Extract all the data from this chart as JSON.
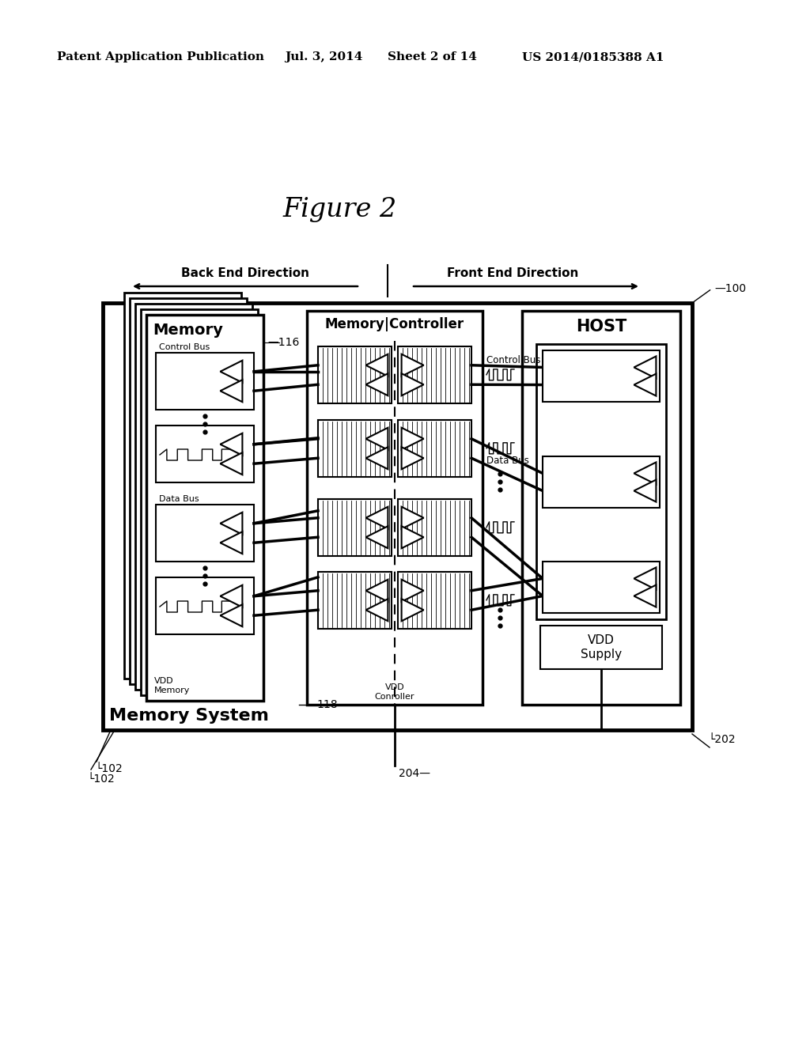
{
  "bg_color": "#ffffff",
  "header_text": "Patent Application Publication",
  "header_date": "Jul. 3, 2014",
  "header_sheet": "Sheet 2 of 14",
  "header_patent": "US 2014/0185388 A1",
  "figure_title": "Figure 2",
  "direction_back": "Back End Direction",
  "direction_front": "Front End Direction",
  "label_100": "100",
  "label_102": "102",
  "label_116": "116",
  "label_118": "118",
  "label_202": "202",
  "label_204": "204",
  "label_memory": "Memory",
  "label_mc": "Memory|Controller",
  "label_host": "HOST",
  "label_memory_system": "Memory System",
  "label_control_bus_left": "Control Bus",
  "label_data_bus_left": "Data Bus",
  "label_control_bus_right": "Control Bus",
  "label_data_bus_right": "Data Bus",
  "label_vdd_memory": "VDD\nMemory",
  "label_vdd_controller": "VDD\nConroller",
  "label_vdd_supply": "VDD\nSupply"
}
